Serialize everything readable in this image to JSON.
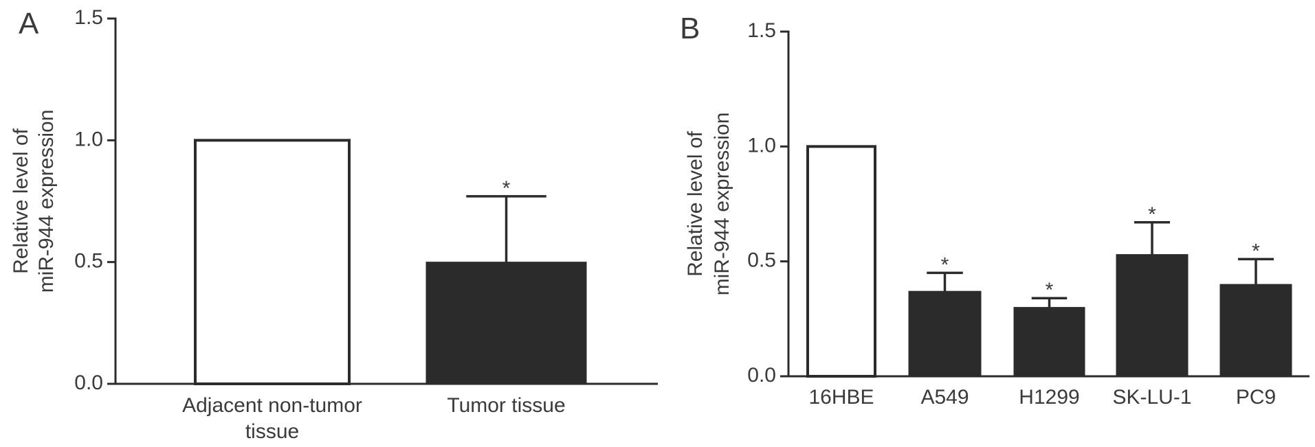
{
  "colors": {
    "axis": "#2b2b2b",
    "text": "#3a3a3a",
    "filled_bar": "#2b2b2b",
    "open_bar": "#ffffff"
  },
  "chart_data": [
    {
      "panel": "A",
      "type": "bar",
      "categories": [
        "Adjacent non-tumor tissue",
        "Tumor tissue"
      ],
      "values": [
        1.0,
        0.5
      ],
      "error_upper": [
        0,
        0.27
      ],
      "significance": [
        "",
        "*"
      ],
      "bar_fill": [
        "#ffffff",
        "#2b2b2b"
      ],
      "ylabel": "Relative level of miR-944 expression",
      "ylim": [
        0,
        1.5
      ],
      "yticks": [
        0,
        0.5,
        1.0,
        1.5
      ],
      "ytick_labels": [
        "0.0",
        "0.5",
        "1.0",
        "1.5"
      ],
      "grid": false
    },
    {
      "panel": "B",
      "type": "bar",
      "categories": [
        "16HBE",
        "A549",
        "H1299",
        "SK-LU-1",
        "PC9"
      ],
      "values": [
        1.0,
        0.37,
        0.3,
        0.53,
        0.4
      ],
      "error_upper": [
        0,
        0.08,
        0.04,
        0.14,
        0.11
      ],
      "significance": [
        "",
        "*",
        "*",
        "*",
        "*"
      ],
      "bar_fill": [
        "#ffffff",
        "#2b2b2b",
        "#2b2b2b",
        "#2b2b2b",
        "#2b2b2b"
      ],
      "ylabel": "Relative level of miR-944 expression",
      "ylim": [
        0,
        1.5
      ],
      "yticks": [
        0,
        0.5,
        1.0,
        1.5
      ],
      "ytick_labels": [
        "0.0",
        "0.5",
        "1.0",
        "1.5"
      ],
      "grid": false
    }
  ]
}
